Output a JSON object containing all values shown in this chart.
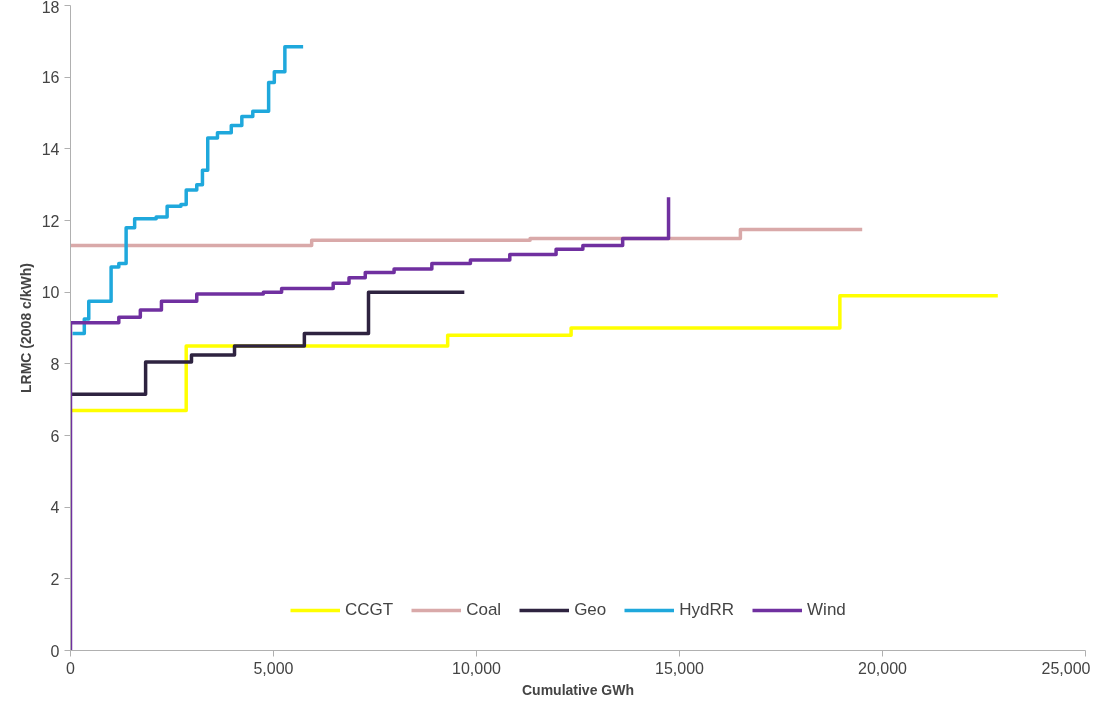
{
  "chart_data": {
    "type": "step",
    "xlabel": "Cumulative GWh",
    "ylabel": "LRMC (2008 c/kWh)",
    "xlim": [
      0,
      25000
    ],
    "ylim": [
      0,
      18
    ],
    "xticks": [
      {
        "value": 0,
        "label": "0"
      },
      {
        "value": 5000,
        "label": "5,000"
      },
      {
        "value": 10000,
        "label": "10,000"
      },
      {
        "value": 15000,
        "label": "15,000"
      },
      {
        "value": 20000,
        "label": "20,000"
      },
      {
        "value": 25000,
        "label": "25,000"
      }
    ],
    "yticks": [
      0,
      2,
      4,
      6,
      8,
      10,
      12,
      14,
      16,
      18
    ],
    "grid": false,
    "legend": "bottom",
    "series": [
      {
        "name": "CCGT",
        "color": "#ffff00",
        "x": [
          0,
          2850,
          9290,
          12330,
          18950,
          22840
        ],
        "values": [
          6.7,
          8.5,
          8.8,
          9.0,
          9.9,
          9.9
        ]
      },
      {
        "name": "Coal",
        "color": "#d9a9a9",
        "x": [
          0,
          5940,
          11320,
          16500,
          19500
        ],
        "values": [
          11.3,
          11.45,
          11.5,
          11.75,
          11.75
        ]
      },
      {
        "name": "Geo",
        "color": "#2e2340",
        "x": [
          0,
          1850,
          2980,
          4040,
          5760,
          7340,
          9700
        ],
        "values": [
          7.15,
          8.05,
          8.25,
          8.5,
          8.85,
          10.0,
          10.0
        ]
      },
      {
        "name": "HydRR",
        "color": "#1fa8dc",
        "x": [
          50,
          340,
          450,
          1000,
          1000,
          1190,
          1370,
          1580,
          2110,
          2380,
          2720,
          2850,
          3110,
          3250,
          3380,
          3620,
          3960,
          4220,
          4490,
          4880,
          4880,
          5020,
          5280,
          5730
        ],
        "values": [
          8.85,
          9.25,
          9.75,
          9.9,
          10.7,
          10.8,
          11.8,
          12.05,
          12.1,
          12.4,
          12.45,
          12.85,
          13.0,
          13.4,
          14.3,
          14.45,
          14.65,
          14.9,
          15.05,
          15.15,
          15.85,
          16.15,
          16.85,
          16.85
        ]
      },
      {
        "name": "Wind",
        "color": "#7030a0",
        "x": [
          0,
          0,
          1190,
          1720,
          2240,
          3110,
          4750,
          5200,
          6470,
          6860,
          7260,
          7970,
          8900,
          9850,
          10820,
          11960,
          12620,
          13600,
          14730,
          14730
        ],
        "values": [
          0,
          9.15,
          9.3,
          9.5,
          9.75,
          9.95,
          10.0,
          10.1,
          10.25,
          10.4,
          10.55,
          10.65,
          10.8,
          10.9,
          11.05,
          11.2,
          11.3,
          11.5,
          11.55,
          12.65
        ]
      }
    ]
  }
}
